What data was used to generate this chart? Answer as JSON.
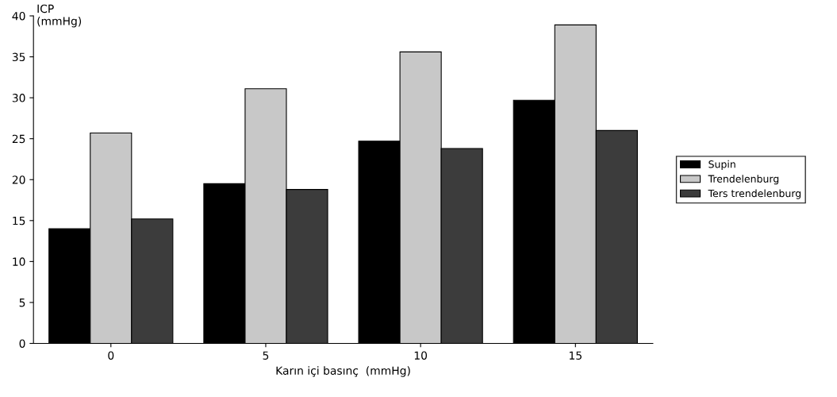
{
  "chart_data": {
    "type": "bar",
    "ylabel": "ICP\n(mmHg)",
    "xlabel": "Karın içi basınç  (mmHg)",
    "categories": [
      "0",
      "5",
      "10",
      "15"
    ],
    "series": [
      {
        "name": "Supin",
        "color": "#000000",
        "values": [
          14.0,
          19.5,
          24.7,
          29.7
        ]
      },
      {
        "name": "Trendelenburg",
        "color": "#c8c8c8",
        "values": [
          25.7,
          31.1,
          35.6,
          38.9
        ]
      },
      {
        "name": "Ters trendelenburg",
        "color": "#3c3c3c",
        "values": [
          15.2,
          18.8,
          23.8,
          26.0
        ]
      }
    ],
    "ylim": [
      0,
      40
    ],
    "yticks": [
      0,
      5,
      10,
      15,
      20,
      25,
      30,
      35,
      40
    ],
    "grid": false,
    "legend": "right"
  }
}
